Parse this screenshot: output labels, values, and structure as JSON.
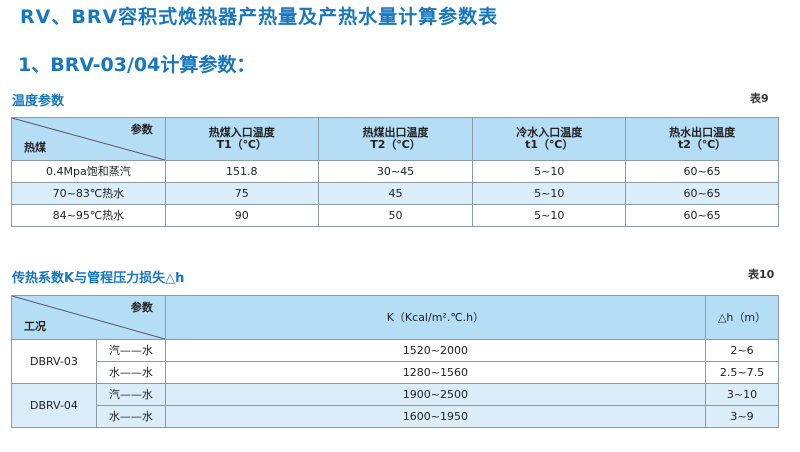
{
  "title": "RV、BRV容积式焕热器产热量及产热水量计算参数表",
  "section": "1、BRV-03/04计算参数：",
  "table9": {
    "caption": "温度参数",
    "number": "表9",
    "corner_top": "参数",
    "corner_bottom": "热煤",
    "headers": [
      {
        "name": "热煤入口温度",
        "unit": "T1（℃）"
      },
      {
        "name": "热煤出口温度",
        "unit": "T2（℃）"
      },
      {
        "name": "冷水入口温度",
        "unit": "t1（℃）"
      },
      {
        "name": "热水出口温度",
        "unit": "t2（℃）"
      }
    ],
    "rows": [
      [
        "0.4Mpa饱和蒸汽",
        "151.8",
        "30~45",
        "5~10",
        "60~65"
      ],
      [
        "70~83℃热水",
        "75",
        "45",
        "5~10",
        "60~65"
      ],
      [
        "84~95℃热水",
        "90",
        "50",
        "5~10",
        "60~65"
      ]
    ]
  },
  "table10": {
    "caption": "传热系数K与管程压力损失△h",
    "number": "表10",
    "corner_top": "参数",
    "corner_bottom": "工况",
    "headers": [
      "K（Kcal/m².℃.h）",
      "△h（m）"
    ],
    "groups": [
      {
        "name": "DBRV-03",
        "rows": [
          {
            "mode": "汽——水",
            "k": "1520~2000",
            "dh": "2~6"
          },
          {
            "mode": "水——水",
            "k": "1280~1560",
            "dh": "2.5~7.5"
          }
        ]
      },
      {
        "name": "DBRV-04",
        "rows": [
          {
            "mode": "汽——水",
            "k": "1900~2500",
            "dh": "3~10"
          },
          {
            "mode": "水——水",
            "k": "1600~1950",
            "dh": "3~9"
          }
        ]
      }
    ]
  }
}
